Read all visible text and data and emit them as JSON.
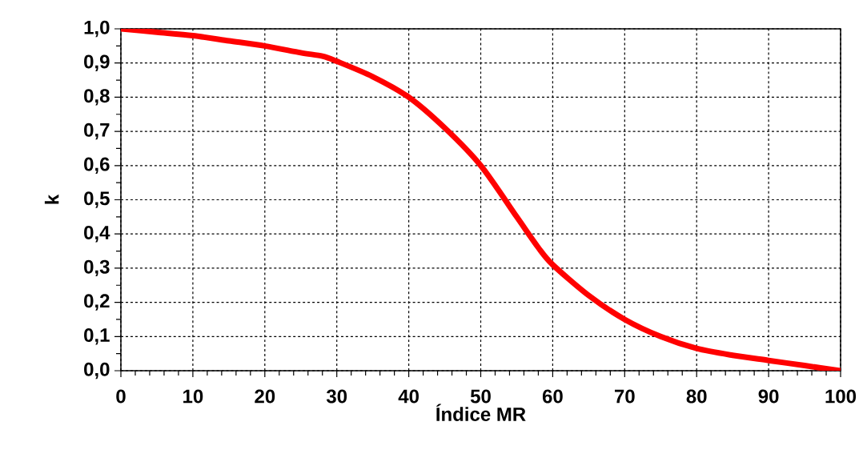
{
  "chart_data": {
    "type": "line",
    "xlabel": "Índice MR",
    "ylabel": "k",
    "x": [
      0,
      5,
      10,
      15,
      20,
      25,
      28,
      30,
      35,
      40,
      45,
      50,
      55,
      58,
      60,
      65,
      70,
      75,
      80,
      85,
      90,
      95,
      100
    ],
    "series": [
      {
        "color": "#ff0000",
        "values": [
          1.0,
          0.99,
          0.98,
          0.965,
          0.95,
          0.93,
          0.92,
          0.905,
          0.86,
          0.8,
          0.71,
          0.6,
          0.45,
          0.36,
          0.31,
          0.22,
          0.15,
          0.1,
          0.065,
          0.045,
          0.03,
          0.015,
          0.0
        ]
      }
    ],
    "xlim": [
      0,
      100
    ],
    "ylim": [
      0,
      1
    ],
    "xticks": [
      0,
      10,
      20,
      30,
      40,
      50,
      60,
      70,
      80,
      90,
      100
    ],
    "yticks": [
      {
        "value": 0,
        "label": "0,0"
      },
      {
        "value": 0.1,
        "label": "0,1"
      },
      {
        "value": 0.2,
        "label": "0,2"
      },
      {
        "value": 0.3,
        "label": "0,3"
      },
      {
        "value": 0.4,
        "label": "0,4"
      },
      {
        "value": 0.5,
        "label": "0,5"
      },
      {
        "value": 0.6,
        "label": "0,6"
      },
      {
        "value": 0.7,
        "label": "0,7"
      },
      {
        "value": 0.8,
        "label": "0,8"
      },
      {
        "value": 0.9,
        "label": "0,9"
      },
      {
        "value": 1,
        "label": "1,0"
      }
    ],
    "grid": true,
    "marker": "none",
    "line_style": "solid"
  }
}
